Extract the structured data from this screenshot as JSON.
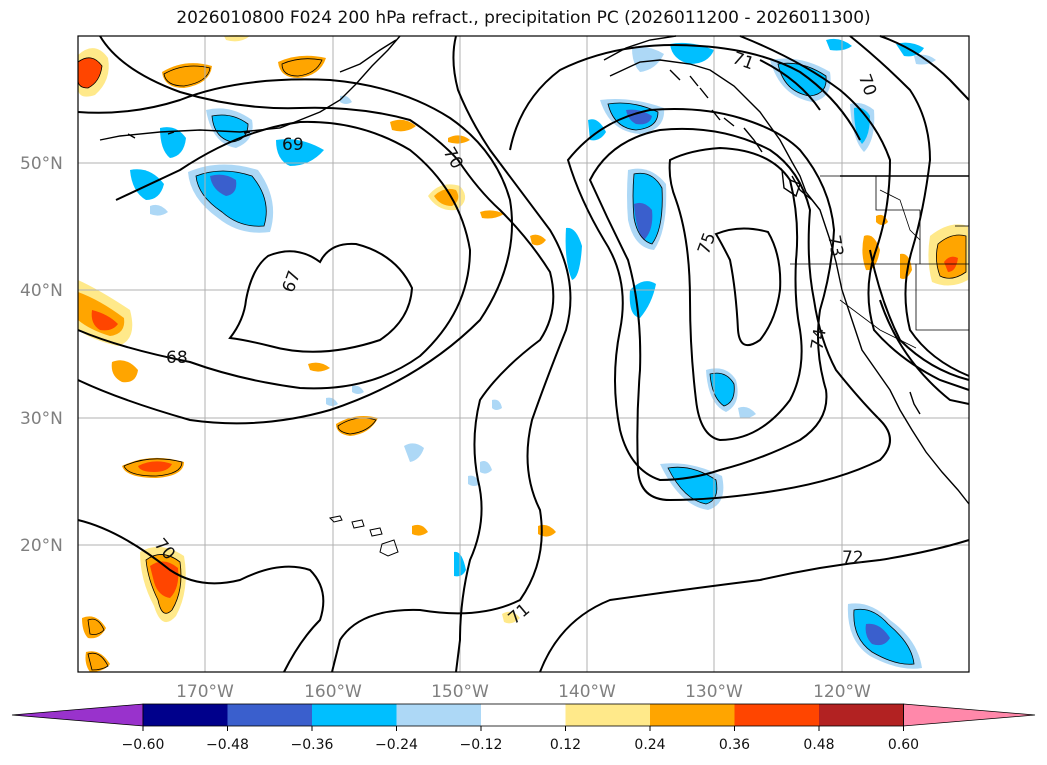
{
  "title": "2026010800 F024 200 hPa refract., precipitation PC (2026011200 - 2026011300)",
  "lat_labels": [
    "50°N",
    "40°N",
    "30°N",
    "20°N"
  ],
  "lon_labels": [
    "170°W",
    "160°W",
    "150°W",
    "140°W",
    "130°W",
    "120°W"
  ],
  "contour_labels": [
    "69",
    "70",
    "67",
    "68",
    "71",
    "75",
    "70",
    "73",
    "74",
    "70",
    "71",
    "72"
  ],
  "colorbar": {
    "ticks": [
      "−0.60",
      "−0.48",
      "−0.36",
      "−0.24",
      "−0.12",
      "0.12",
      "0.24",
      "0.36",
      "0.48",
      "0.60"
    ],
    "colors": [
      "#9932cc",
      "#00008b",
      "#3a5fcd",
      "#00bfff",
      "#add8f6",
      "#ffffff",
      "#ffe98a",
      "#ffa500",
      "#ff4500",
      "#b22222",
      "#ff88aa"
    ]
  },
  "chart_data": {
    "type": "map",
    "projection": "lat-lon",
    "lon_range": [
      -180,
      -110
    ],
    "lat_range": [
      10,
      60
    ],
    "gridlines": true,
    "fields": [
      "200 hPa refractivity (contours)",
      "precipitation PC (shaded)"
    ]
  }
}
